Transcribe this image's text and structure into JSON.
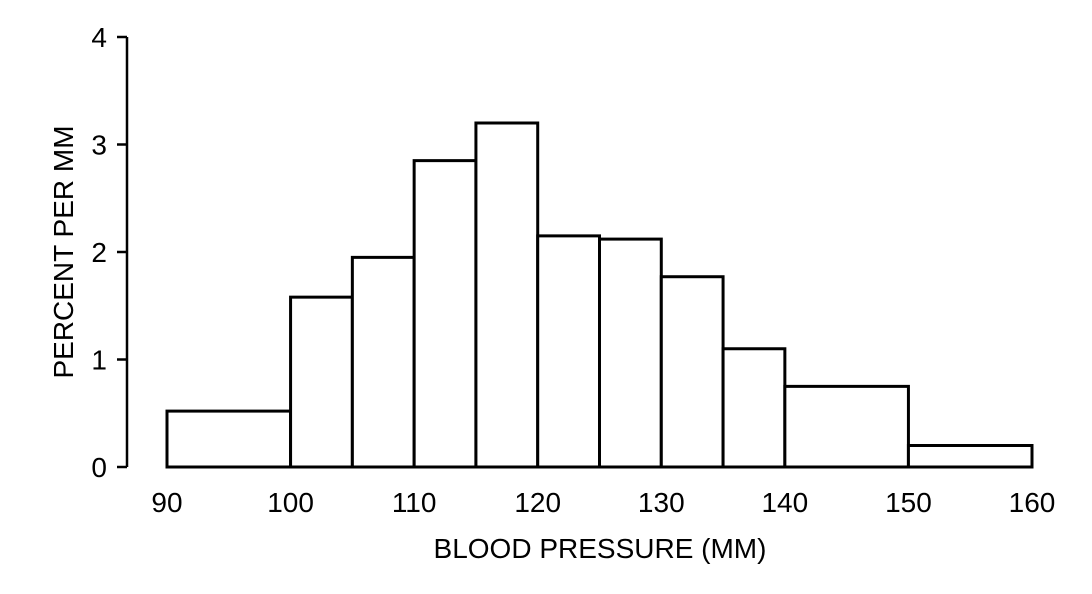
{
  "chart_data": {
    "type": "bar",
    "bins": [
      {
        "start": 90,
        "end": 100,
        "value": 0.52
      },
      {
        "start": 100,
        "end": 105,
        "value": 1.58
      },
      {
        "start": 105,
        "end": 110,
        "value": 1.95
      },
      {
        "start": 110,
        "end": 115,
        "value": 2.85
      },
      {
        "start": 115,
        "end": 120,
        "value": 3.2
      },
      {
        "start": 120,
        "end": 125,
        "value": 2.15
      },
      {
        "start": 125,
        "end": 130,
        "value": 2.12
      },
      {
        "start": 130,
        "end": 135,
        "value": 1.77
      },
      {
        "start": 135,
        "end": 140,
        "value": 1.1
      },
      {
        "start": 140,
        "end": 150,
        "value": 0.75
      },
      {
        "start": 150,
        "end": 160,
        "value": 0.2
      }
    ],
    "xlabel": "BLOOD PRESSURE (MM)",
    "ylabel": "PERCENT PER MM",
    "xlim": [
      90,
      160
    ],
    "ylim": [
      0,
      4
    ],
    "xticks": [
      "90",
      "100",
      "110",
      "120",
      "130",
      "140",
      "150",
      "160"
    ],
    "yticks": [
      "0",
      "1",
      "2",
      "3",
      "4"
    ],
    "grid": false
  }
}
